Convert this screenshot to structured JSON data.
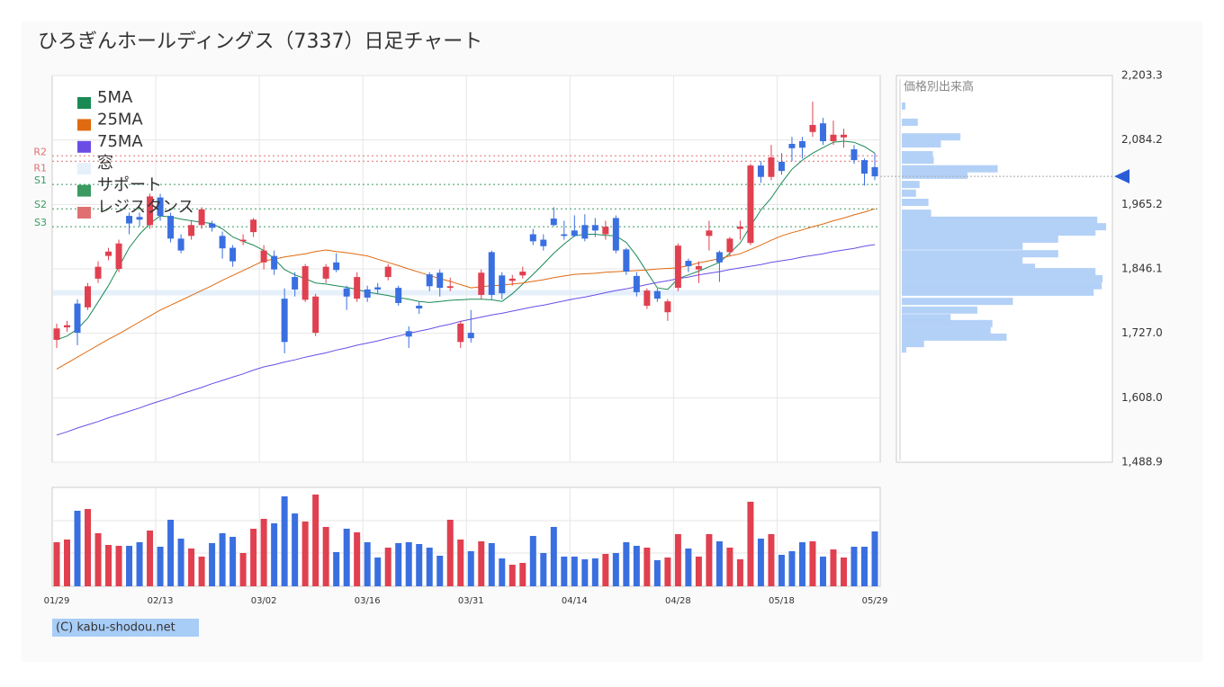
{
  "chart_data": [
    {
      "type": "candlestick",
      "title": "ひろぎんホールディングス（7337）日足チャート",
      "categories": [
        "01/29",
        null,
        null,
        null,
        null,
        null,
        null,
        null,
        null,
        null,
        "02/13",
        null,
        null,
        null,
        null,
        null,
        null,
        null,
        null,
        null,
        "03/02",
        null,
        null,
        null,
        null,
        null,
        null,
        null,
        null,
        null,
        "03/16",
        null,
        null,
        null,
        null,
        null,
        null,
        null,
        null,
        null,
        "03/31",
        null,
        null,
        null,
        null,
        null,
        null,
        null,
        null,
        null,
        "04/14",
        null,
        null,
        null,
        null,
        null,
        null,
        null,
        null,
        null,
        "04/28",
        null,
        null,
        null,
        null,
        null,
        null,
        null,
        null,
        null,
        "05/18",
        null,
        null,
        null,
        null,
        null,
        null,
        null,
        null,
        "05/29"
      ],
      "open": [
        1715,
        1738,
        1782,
        1775,
        1828,
        1870,
        1846,
        1944,
        1942,
        1927,
        1978,
        1944,
        1902,
        1907,
        1927,
        1930,
        1907,
        1885,
        1897,
        1914,
        1858,
        1870,
        1791,
        1831,
        1789,
        1728,
        1828,
        1858,
        1810,
        1791,
        1808,
        1812,
        1831,
        1811,
        1731,
        1778,
        1836,
        1839,
        1811,
        1711,
        1728,
        1798,
        1877,
        1834,
        1824,
        1834,
        1910,
        1900,
        1939,
        1910,
        1917,
        1927,
        1927,
        1910,
        1940,
        1882,
        1833,
        1778,
        1805,
        1766,
        1811,
        1861,
        1845,
        1907,
        1877,
        1877,
        1920,
        1894,
        2037,
        2016,
        2044,
        2077,
        2082,
        2099,
        2115,
        2082,
        2089,
        2067,
        2047,
        2034
      ],
      "high": [
        1745,
        1750,
        1790,
        1820,
        1860,
        1885,
        1900,
        1950,
        1950,
        1985,
        1985,
        1950,
        1910,
        1935,
        1960,
        1935,
        1915,
        1890,
        1910,
        1940,
        1890,
        1880,
        1810,
        1840,
        1855,
        1800,
        1855,
        1875,
        1815,
        1840,
        1815,
        1820,
        1855,
        1815,
        1740,
        1786,
        1840,
        1845,
        1830,
        1750,
        1770,
        1845,
        1880,
        1840,
        1835,
        1850,
        1920,
        1910,
        1960,
        1935,
        1945,
        1947,
        1940,
        1935,
        1945,
        1885,
        1840,
        1810,
        1810,
        1790,
        1893,
        1865,
        1860,
        1935,
        1880,
        1905,
        1935,
        2040,
        2045,
        2075,
        2060,
        2090,
        2090,
        2155,
        2125,
        2120,
        2105,
        2075,
        2050,
        2060
      ],
      "low": [
        1700,
        1730,
        1705,
        1770,
        1820,
        1862,
        1840,
        1910,
        1925,
        1920,
        1935,
        1895,
        1875,
        1900,
        1920,
        1915,
        1865,
        1850,
        1890,
        1905,
        1845,
        1835,
        1690,
        1795,
        1785,
        1722,
        1820,
        1840,
        1770,
        1785,
        1785,
        1800,
        1825,
        1778,
        1700,
        1763,
        1805,
        1795,
        1805,
        1700,
        1710,
        1790,
        1790,
        1790,
        1815,
        1828,
        1890,
        1880,
        1925,
        1900,
        1905,
        1897,
        1905,
        1900,
        1875,
        1835,
        1795,
        1772,
        1785,
        1750,
        1805,
        1840,
        1820,
        1880,
        1822,
        1870,
        1900,
        1890,
        2005,
        2010,
        2020,
        2045,
        2050,
        2090,
        2075,
        2075,
        2070,
        2040,
        2000,
        2010
      ],
      "close": [
        1736,
        1742,
        1728,
        1814,
        1850,
        1878,
        1893,
        1930,
        1937,
        1980,
        1944,
        1902,
        1880,
        1927,
        1956,
        1922,
        1884,
        1860,
        1900,
        1937,
        1880,
        1845,
        1711,
        1808,
        1851,
        1795,
        1850,
        1844,
        1795,
        1831,
        1793,
        1808,
        1850,
        1783,
        1721,
        1773,
        1814,
        1811,
        1814,
        1745,
        1718,
        1839,
        1798,
        1801,
        1828,
        1841,
        1897,
        1888,
        1927,
        1907,
        1907,
        1902,
        1917,
        1924,
        1880,
        1841,
        1803,
        1806,
        1791,
        1786,
        1889,
        1851,
        1851,
        1917,
        1858,
        1902,
        1924,
        2037,
        2016,
        2052,
        2027,
        2069,
        2070,
        2112,
        2082,
        2094,
        2094,
        2047,
        2022,
        2017
      ],
      "up_color": "#e0404f",
      "down_color": "#3a6fe0",
      "series": [
        {
          "name": "5MA",
          "color": "#1a8a55",
          "values": [
            1715,
            1722,
            1735,
            1755,
            1785,
            1815,
            1850,
            1885,
            1910,
            1930,
            1944,
            1942,
            1938,
            1935,
            1932,
            1930,
            1920,
            1905,
            1897,
            1890,
            1880,
            1865,
            1845,
            1835,
            1828,
            1820,
            1818,
            1815,
            1812,
            1808,
            1803,
            1800,
            1797,
            1793,
            1790,
            1786,
            1784,
            1786,
            1788,
            1789,
            1790,
            1790,
            1789,
            1786,
            1800,
            1818,
            1836,
            1855,
            1875,
            1892,
            1907,
            1910,
            1910,
            1908,
            1907,
            1895,
            1870,
            1840,
            1811,
            1808,
            1828,
            1835,
            1842,
            1850,
            1858,
            1875,
            1894,
            1925,
            1955,
            1977,
            2005,
            2030,
            2047,
            2060,
            2070,
            2080,
            2082,
            2080,
            2072,
            2060
          ]
        },
        {
          "name": "25MA",
          "color": "#e06a10",
          "values": [
            1661,
            1672,
            1683,
            1694,
            1705,
            1716,
            1726,
            1737,
            1748,
            1759,
            1770,
            1779,
            1788,
            1797,
            1806,
            1815,
            1825,
            1834,
            1843,
            1852,
            1861,
            1864,
            1868,
            1871,
            1874,
            1878,
            1881,
            1878,
            1876,
            1873,
            1870,
            1864,
            1858,
            1852,
            1846,
            1840,
            1834,
            1828,
            1823,
            1817,
            1811,
            1813,
            1815,
            1816,
            1818,
            1820,
            1823,
            1826,
            1830,
            1833,
            1836,
            1837,
            1838,
            1840,
            1841,
            1842,
            1843,
            1844,
            1846,
            1847,
            1848,
            1852,
            1857,
            1861,
            1865,
            1870,
            1874,
            1882,
            1890,
            1899,
            1907,
            1913,
            1918,
            1924,
            1929,
            1935,
            1940,
            1946,
            1951,
            1957
          ]
        },
        {
          "name": "75MA",
          "color": "#6b4de6",
          "values": [
            1539,
            1545,
            1552,
            1558,
            1564,
            1571,
            1577,
            1583,
            1589,
            1596,
            1602,
            1608,
            1615,
            1621,
            1627,
            1634,
            1640,
            1646,
            1652,
            1659,
            1665,
            1669,
            1674,
            1678,
            1683,
            1687,
            1691,
            1696,
            1700,
            1705,
            1709,
            1713,
            1718,
            1722,
            1727,
            1731,
            1735,
            1740,
            1744,
            1749,
            1753,
            1757,
            1761,
            1764,
            1768,
            1772,
            1776,
            1779,
            1783,
            1787,
            1791,
            1794,
            1798,
            1802,
            1806,
            1809,
            1813,
            1817,
            1821,
            1824,
            1828,
            1831,
            1835,
            1838,
            1841,
            1845,
            1848,
            1851,
            1854,
            1858,
            1861,
            1864,
            1868,
            1871,
            1874,
            1878,
            1881,
            1884,
            1888,
            1891
          ]
        }
      ],
      "window": {
        "name": "窓",
        "range": [
          1797,
          1807
        ],
        "color": "#e6f0fb"
      },
      "levels": [
        {
          "label": "R2",
          "value": 2055,
          "color": "#e07070"
        },
        {
          "label": "R1",
          "value": 2045,
          "color": "#e07070"
        },
        {
          "label": "S1",
          "value": 2002,
          "color": "#3a9a60"
        },
        {
          "label": "S2",
          "value": 1957,
          "color": "#3a9a60"
        },
        {
          "label": "S3",
          "value": 1924,
          "color": "#3a9a60"
        }
      ],
      "legend": [
        {
          "name": "サポート",
          "color": "#3a9a60"
        },
        {
          "name": "レジスタンス",
          "color": "#e07070"
        }
      ],
      "ylim": [
        1488.9,
        2203.3
      ],
      "yticks": [
        {
          "value": 1488.9,
          "label": "1,488.9"
        },
        {
          "value": 1608.0,
          "label": "1,608.0"
        },
        {
          "value": 1727.0,
          "label": "1,727.0"
        },
        {
          "value": 1846.1,
          "label": "1,846.1"
        },
        {
          "value": 1965.2,
          "label": "1,965.2"
        },
        {
          "value": 2084.2,
          "label": "2,084.2"
        },
        {
          "value": 2203.3,
          "label": "2,203.3"
        }
      ],
      "grid": true,
      "copyright": "(C) kabu-shodou.net"
    },
    {
      "type": "bar",
      "values": [
        49,
        52,
        84,
        86,
        59,
        46,
        45,
        45,
        49,
        62,
        44,
        74,
        53,
        42,
        33,
        48,
        59,
        55,
        37,
        64,
        75,
        70,
        100,
        81,
        72,
        102,
        66,
        38,
        64,
        60,
        49,
        32,
        43,
        48,
        49,
        47,
        43,
        34,
        74,
        52,
        39,
        50,
        48,
        31,
        24,
        26,
        56,
        37,
        66,
        33,
        33,
        30,
        31,
        36,
        37,
        49,
        45,
        43,
        29,
        32,
        58,
        42,
        33,
        58,
        50,
        43,
        30,
        94,
        53,
        58,
        35,
        39,
        49,
        50,
        33,
        41,
        32,
        44,
        44,
        61
      ],
      "ylim": [
        0,
        110
      ]
    },
    {
      "type": "barh",
      "title": "価格別出来高",
      "color": "#b3d1f7",
      "y": [
        2147,
        2117,
        2090,
        2077,
        2057,
        2047,
        2031,
        2019,
        2002,
        1986,
        1969,
        1949,
        1936,
        1924,
        1914,
        1901,
        1888,
        1874,
        1861,
        1849,
        1841,
        1828,
        1815,
        1803,
        1786,
        1770,
        1756,
        1745,
        1732,
        1720,
        1708,
        1698
      ],
      "values": [
        4,
        18,
        66,
        44,
        35,
        36,
        108,
        74,
        20,
        16,
        30,
        33,
        220,
        230,
        218,
        176,
        136,
        176,
        136,
        150,
        218,
        226,
        225,
        216,
        125,
        85,
        55,
        102,
        100,
        118,
        25,
        5
      ],
      "xlim": [
        0,
        235
      ]
    }
  ]
}
